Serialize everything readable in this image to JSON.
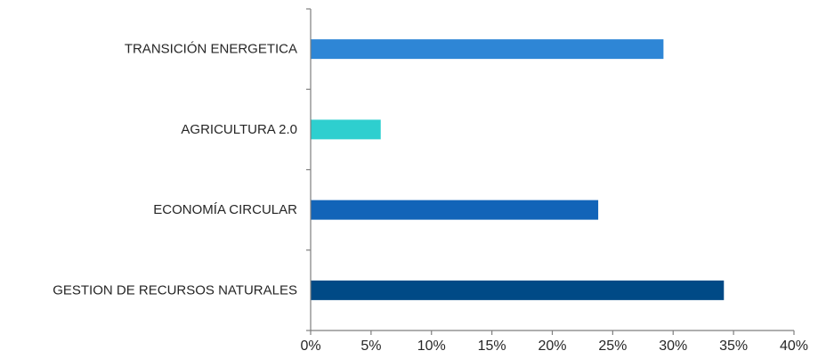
{
  "chart_data": {
    "type": "bar",
    "orientation": "horizontal",
    "categories": [
      "TRANSICIÓN ENERGETICA",
      "AGRICULTURA 2.0",
      "ECONOMÍA CIRCULAR",
      "GESTION DE RECURSOS NATURALES"
    ],
    "values": [
      29.2,
      5.8,
      23.8,
      34.2
    ],
    "colors": [
      "#2e86d6",
      "#2ecfcf",
      "#1264b8",
      "#004a86"
    ],
    "xlim": [
      0,
      40
    ],
    "xticks": [
      0,
      5,
      10,
      15,
      20,
      25,
      30,
      35,
      40
    ],
    "xtick_labels": [
      "0%",
      "5%",
      "10%",
      "15%",
      "20%",
      "25%",
      "30%",
      "35%",
      "40%"
    ],
    "title": "",
    "xlabel": "",
    "ylabel": "",
    "grid": false,
    "legend": "none"
  }
}
